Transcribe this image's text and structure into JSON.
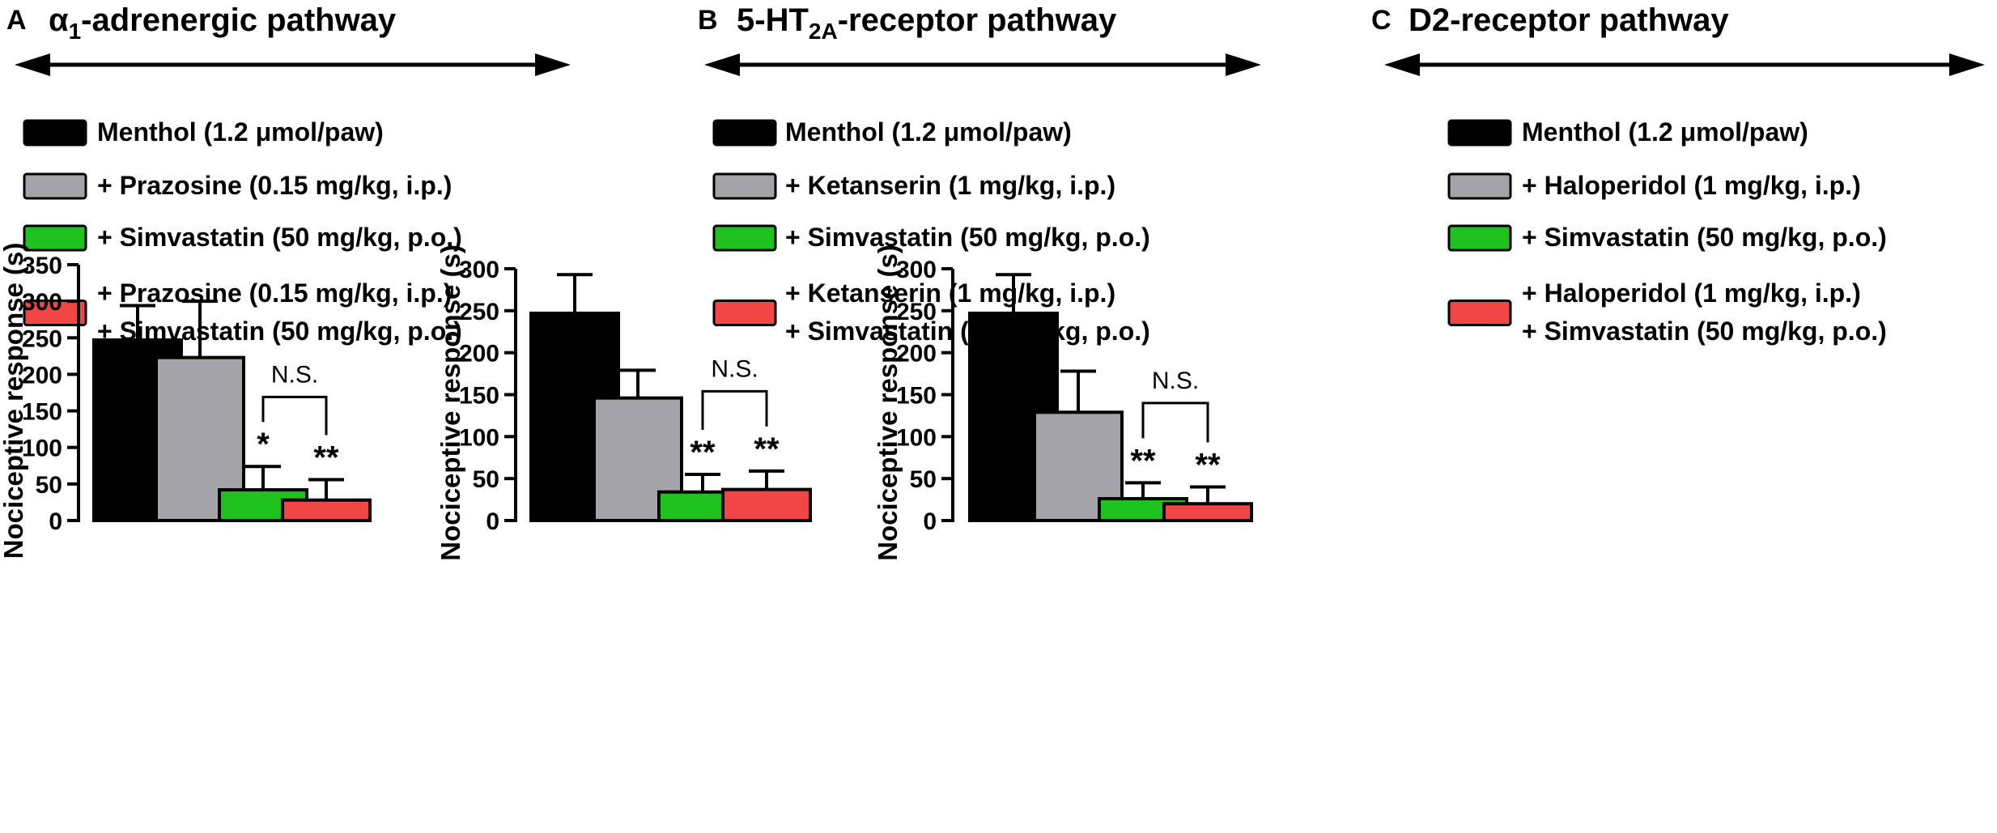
{
  "panels": [
    {
      "letter": "A",
      "title_prefix": "α",
      "title_sub": "1",
      "title_suffix": "-adrenergic pathway",
      "legend": [
        {
          "lines": [
            "Menthol (1.2 μmol/paw)"
          ],
          "color": "#000000"
        },
        {
          "lines": [
            "+ Prazosine (0.15 mg/kg, i.p.)"
          ],
          "color": "#a3a3a8"
        },
        {
          "lines": [
            "+ Simvastatin (50 mg/kg, p.o.)"
          ],
          "color": "#1ec21e"
        },
        {
          "lines": [
            "+ Prazosine (0.15 mg/kg, i.p.)",
            "+ Simvastatin (50 mg/kg, p.o.)"
          ],
          "color": "#f24545"
        }
      ]
    },
    {
      "letter": "B",
      "title_prefix": "5-HT",
      "title_sub": "2A",
      "title_suffix": "-receptor pathway",
      "legend": [
        {
          "lines": [
            "Menthol (1.2 μmol/paw)"
          ],
          "color": "#000000"
        },
        {
          "lines": [
            "+ Ketanserin (1 mg/kg, i.p.)"
          ],
          "color": "#a3a3a8"
        },
        {
          "lines": [
            "+ Simvastatin (50 mg/kg, p.o.)"
          ],
          "color": "#1ec21e"
        },
        {
          "lines": [
            "+ Ketanserin (1 mg/kg, i.p.)",
            "+ Simvastatin (50 mg/kg, p.o.)"
          ],
          "color": "#f24545"
        }
      ]
    },
    {
      "letter": "C",
      "title_prefix": "D2-receptor pathway",
      "title_sub": "",
      "title_suffix": "",
      "legend": [
        {
          "lines": [
            "Menthol (1.2 μmol/paw)"
          ],
          "color": "#000000"
        },
        {
          "lines": [
            "+ Haloperidol (1 mg/kg, i.p.)"
          ],
          "color": "#a3a3a8"
        },
        {
          "lines": [
            "+ Simvastatin (50 mg/kg, p.o.)"
          ],
          "color": "#1ec21e"
        },
        {
          "lines": [
            "+ Haloperidol (1 mg/kg, i.p.)",
            "+ Simvastatin (50 mg/kg, p.o.)"
          ],
          "color": "#f24545"
        }
      ]
    }
  ],
  "chart_data": [
    {
      "type": "bar",
      "ylabel": "Nociceptive response (s)",
      "ylim": [
        0,
        350
      ],
      "yticks": [
        0,
        50,
        100,
        150,
        200,
        250,
        300,
        350
      ],
      "values": [
        247,
        223,
        42,
        28
      ],
      "errors": [
        47,
        77,
        32,
        28
      ],
      "colors": [
        "#000000",
        "#a3a3a8",
        "#1ec21e",
        "#f24545"
      ],
      "significance": [
        "",
        "",
        "*",
        "**"
      ],
      "bracket": {
        "from": 2,
        "to": 3,
        "label": "N.S."
      }
    },
    {
      "type": "bar",
      "ylabel": "Nociceptive response (s)",
      "ylim": [
        0,
        300
      ],
      "yticks": [
        0,
        50,
        100,
        150,
        200,
        250,
        300
      ],
      "values": [
        247,
        146,
        34,
        37
      ],
      "errors": [
        46,
        33,
        21,
        22
      ],
      "colors": [
        "#000000",
        "#a3a3a8",
        "#1ec21e",
        "#f24545"
      ],
      "significance": [
        "",
        "",
        "**",
        "**"
      ],
      "bracket": {
        "from": 2,
        "to": 3,
        "label": "N.S."
      }
    },
    {
      "type": "bar",
      "ylabel": "Nociceptive response (s)",
      "ylim": [
        0,
        300
      ],
      "yticks": [
        0,
        50,
        100,
        150,
        200,
        250,
        300
      ],
      "values": [
        247,
        129,
        26,
        20
      ],
      "errors": [
        46,
        49,
        19,
        20
      ],
      "colors": [
        "#000000",
        "#a3a3a8",
        "#1ec21e",
        "#f24545"
      ],
      "significance": [
        "",
        "",
        "**",
        "**"
      ],
      "bracket": {
        "from": 2,
        "to": 3,
        "label": "N.S."
      }
    }
  ]
}
